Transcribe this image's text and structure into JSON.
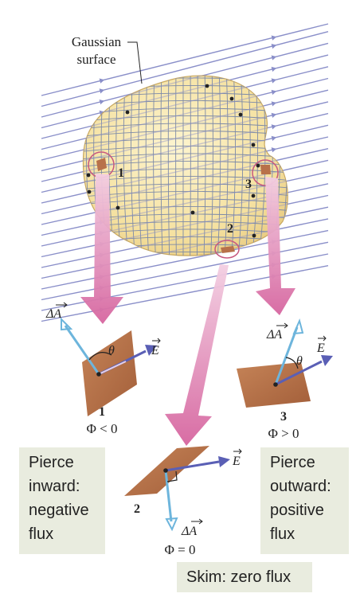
{
  "surface": {
    "label_line1": "Gaussian",
    "label_line2": "surface"
  },
  "cases": [
    {
      "number": "1",
      "flux": "Φ < 0",
      "area_label": "ΔA",
      "field_label": "E",
      "angle_label": "θ"
    },
    {
      "number": "2",
      "flux": "Φ = 0",
      "area_label": "ΔA",
      "field_label": "E"
    },
    {
      "number": "3",
      "flux": "Φ > 0",
      "area_label": "ΔA",
      "field_label": "E",
      "angle_label": "θ"
    }
  ],
  "notes": {
    "inward": [
      "Pierce",
      "inward:",
      "negative",
      "flux"
    ],
    "outward": [
      "Pierce",
      "outward:",
      "positive",
      "flux"
    ],
    "skim": "Skim: zero flux"
  },
  "colors": {
    "field_lines": "#8a8fc9",
    "surface_fill": "#f7e6a6",
    "grid": "#7d8aa8",
    "big_arrow": "#d98aba",
    "area_vector": "#6db5dc",
    "field_vector": "#5a5fb5",
    "patch": "#b8714a",
    "note_bg": "#e9ecdf"
  }
}
